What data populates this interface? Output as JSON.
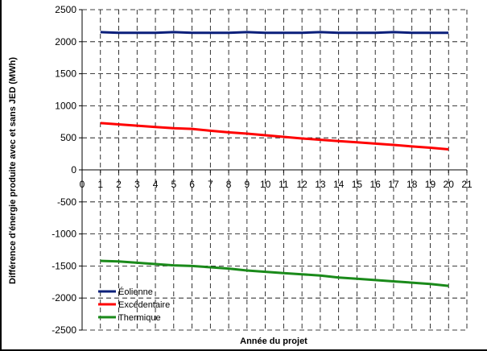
{
  "chart_data": {
    "type": "line",
    "title": "",
    "xlabel": "Année du projet",
    "ylabel": "Différence d'énergie produite avec et sans JED (MWh)",
    "xlim": [
      0,
      21
    ],
    "ylim": [
      -2500,
      2500
    ],
    "xticks": [
      0,
      1,
      2,
      3,
      4,
      5,
      6,
      7,
      8,
      9,
      10,
      11,
      12,
      13,
      14,
      15,
      16,
      17,
      18,
      19,
      20,
      21
    ],
    "yticks": [
      -2500,
      -2000,
      -1500,
      -1000,
      -500,
      0,
      500,
      1000,
      1500,
      2000,
      2500
    ],
    "grid": true,
    "legend_position": "bottom-left",
    "x": [
      1,
      2,
      3,
      4,
      5,
      6,
      7,
      8,
      9,
      10,
      11,
      12,
      13,
      14,
      15,
      16,
      17,
      18,
      19,
      20
    ],
    "series": [
      {
        "name": "Éolienne",
        "color": "#0a1f7a",
        "values": [
          2150,
          2140,
          2140,
          2140,
          2150,
          2140,
          2140,
          2140,
          2150,
          2140,
          2140,
          2140,
          2150,
          2140,
          2140,
          2140,
          2150,
          2140,
          2140,
          2140
        ]
      },
      {
        "name": "Excédentaire",
        "color": "#ff0000",
        "values": [
          730,
          710,
          690,
          670,
          650,
          640,
          610,
          585,
          565,
          540,
          515,
          490,
          470,
          450,
          430,
          410,
          390,
          365,
          345,
          320
        ]
      },
      {
        "name": "Thermique",
        "color": "#1a8a1a",
        "values": [
          -1420,
          -1430,
          -1450,
          -1470,
          -1490,
          -1500,
          -1520,
          -1540,
          -1570,
          -1590,
          -1610,
          -1630,
          -1650,
          -1680,
          -1700,
          -1720,
          -1740,
          -1760,
          -1780,
          -1810
        ]
      }
    ]
  }
}
